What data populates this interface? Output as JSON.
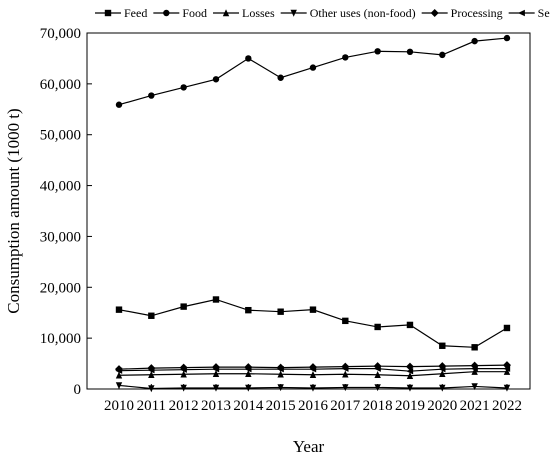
{
  "chart_data": {
    "type": "line",
    "title": "",
    "xlabel": "Year",
    "ylabel": "Consumption amount (1000 t)",
    "x": [
      "2010",
      "2011",
      "2012",
      "2013",
      "2014",
      "2015",
      "2016",
      "2017",
      "2018",
      "2019",
      "2020",
      "2021",
      "2022"
    ],
    "ylim": [
      0,
      70000
    ],
    "yticks": [
      0,
      10000,
      20000,
      30000,
      40000,
      50000,
      60000,
      70000
    ],
    "ytick_labels": [
      "0",
      "10,000",
      "20,000",
      "30,000",
      "40,000",
      "50,000",
      "60,000",
      "70,000"
    ],
    "grid": false,
    "legend_position": "top",
    "series": [
      {
        "name": "Feed",
        "marker": "square",
        "values": [
          15600,
          14400,
          16200,
          17600,
          15500,
          15200,
          15600,
          13400,
          12200,
          12600,
          8500,
          8200,
          12000
        ]
      },
      {
        "name": "Food",
        "marker": "circle",
        "values": [
          55900,
          57700,
          59300,
          60900,
          65000,
          61200,
          63200,
          65200,
          66400,
          66300,
          65700,
          68400,
          69000
        ]
      },
      {
        "name": "Losses",
        "marker": "triangle-up",
        "values": [
          2700,
          2800,
          2900,
          3000,
          3000,
          2900,
          2800,
          2900,
          2800,
          2600,
          3000,
          3400,
          3400
        ]
      },
      {
        "name": "Other uses (non-food)",
        "marker": "triangle-down",
        "values": [
          700,
          100,
          200,
          200,
          200,
          300,
          200,
          300,
          300,
          200,
          200,
          500,
          200
        ]
      },
      {
        "name": "Processing",
        "marker": "diamond",
        "values": [
          3900,
          4100,
          4200,
          4300,
          4300,
          4200,
          4300,
          4400,
          4500,
          4400,
          4500,
          4600,
          4700
        ]
      },
      {
        "name": "Seed",
        "marker": "triangle-left",
        "values": [
          3600,
          3700,
          3800,
          3900,
          3900,
          3900,
          3900,
          4000,
          4000,
          3500,
          3900,
          4000,
          4000
        ]
      }
    ]
  }
}
